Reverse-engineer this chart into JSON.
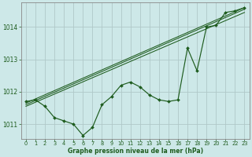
{
  "title": "Graphe pression niveau de la mer (hPa)",
  "background_color": "#cde8e8",
  "grid_color": "#b0c8c8",
  "line_color": "#1e5c1e",
  "xlim": [
    -0.5,
    23.5
  ],
  "ylim": [
    1010.55,
    1014.75
  ],
  "yticks": [
    1011,
    1012,
    1013,
    1014
  ],
  "xticks": [
    0,
    1,
    2,
    3,
    4,
    5,
    6,
    7,
    8,
    9,
    10,
    11,
    12,
    13,
    14,
    15,
    16,
    17,
    18,
    19,
    20,
    21,
    22,
    23
  ],
  "series1_x": [
    0,
    1,
    2,
    3,
    4,
    5,
    6,
    7,
    8,
    9,
    10,
    11,
    12,
    13,
    14,
    15,
    16,
    17,
    18,
    19,
    20,
    21,
    22,
    23
  ],
  "series1_y": [
    1011.7,
    1011.75,
    1011.55,
    1011.2,
    1011.1,
    1011.0,
    1010.65,
    1010.9,
    1011.6,
    1011.85,
    1012.2,
    1012.3,
    1012.15,
    1011.9,
    1011.75,
    1011.7,
    1011.75,
    1013.35,
    1012.65,
    1014.0,
    1014.05,
    1014.45,
    1014.5,
    1014.6
  ],
  "trend1_x": [
    0,
    23
  ],
  "trend1_y": [
    1011.55,
    1014.45
  ],
  "trend2_x": [
    0,
    23
  ],
  "trend2_y": [
    1011.6,
    1014.55
  ],
  "trend3_x": [
    0,
    23
  ],
  "trend3_y": [
    1011.65,
    1014.6
  ],
  "xlabel_size": 5.5,
  "ytick_size": 5.5,
  "xtick_size": 4.8
}
